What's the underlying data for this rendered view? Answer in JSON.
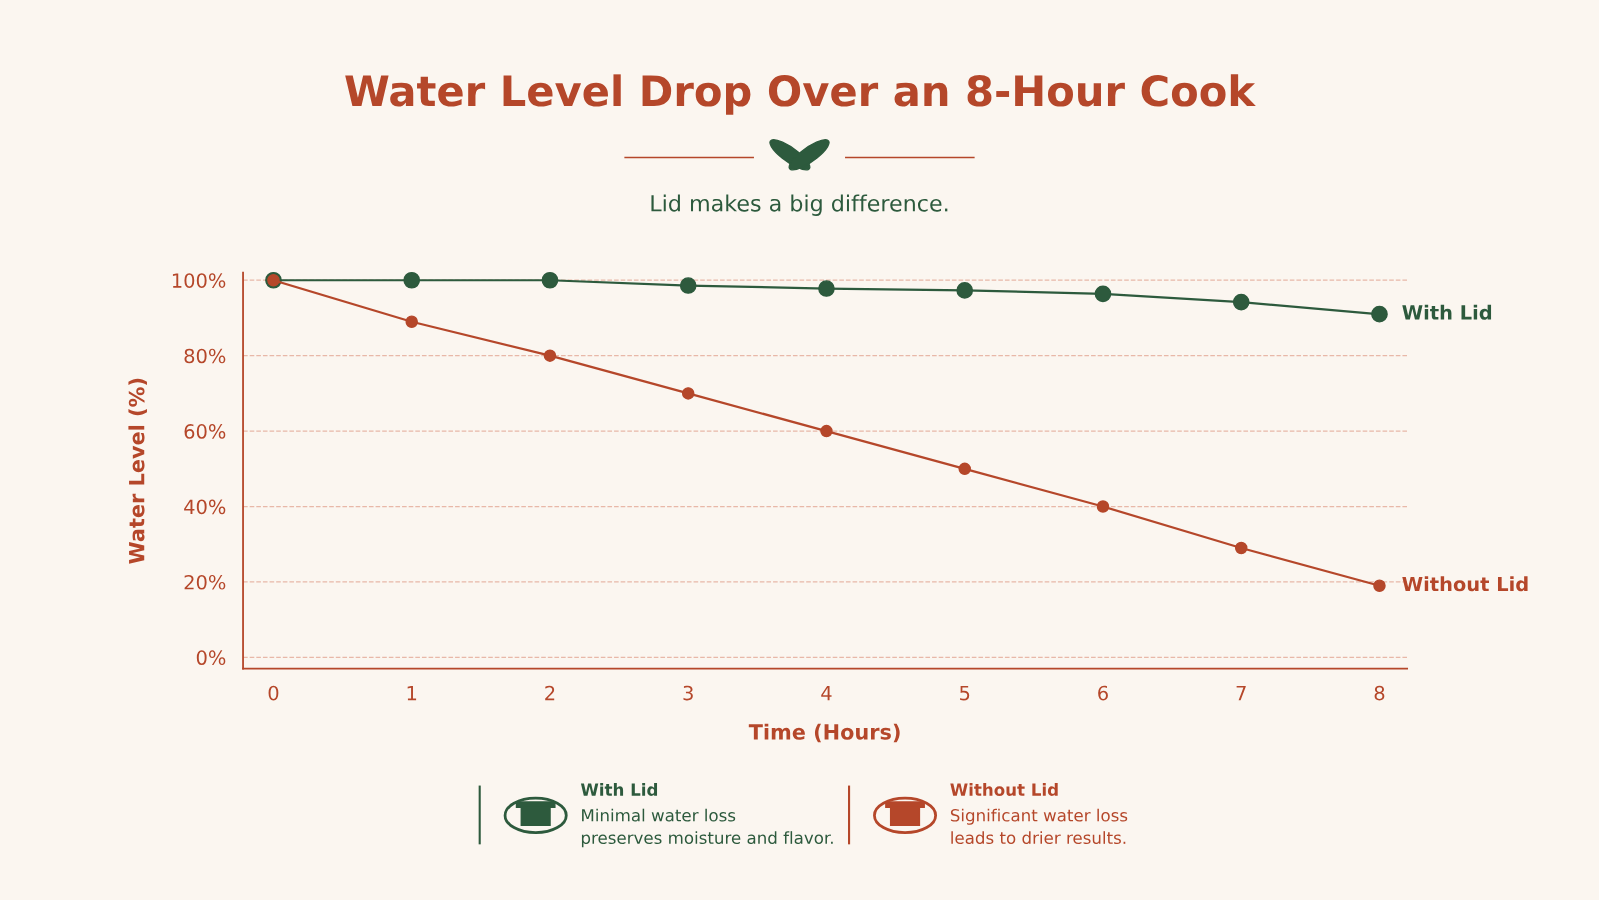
{
  "chart_data": {
    "type": "line",
    "title": "Water Level Drop Over an 8-Hour Cook",
    "subtitle": "Lid makes a big difference.",
    "xlabel": "Time (Hours)",
    "ylabel": "Water Level (%)",
    "x": [
      0,
      1,
      2,
      3,
      4,
      5,
      6,
      7,
      8
    ],
    "series": [
      {
        "name": "With Lid",
        "color": "#2d5a3d",
        "values": [
          100,
          100,
          100,
          98.6,
          97.8,
          97.3,
          96.4,
          94.2,
          91
        ]
      },
      {
        "name": "Without Lid",
        "color": "#b5472a",
        "values": [
          100,
          89,
          80,
          70,
          60,
          50,
          40,
          29,
          19
        ]
      }
    ],
    "xlim": [
      -0.22,
      8.2
    ],
    "xticks": [
      0,
      1,
      2,
      3,
      4,
      5,
      6,
      7,
      8
    ],
    "ylim": [
      -3,
      102
    ],
    "yticks": [
      {
        "value": 0,
        "label": "0%"
      },
      {
        "value": 20,
        "label": "20%"
      },
      {
        "value": 40,
        "label": "40%"
      },
      {
        "value": 60,
        "label": "60%"
      },
      {
        "value": 80,
        "label": "80%"
      },
      {
        "value": 100,
        "label": "100%"
      }
    ],
    "grid": "y",
    "marker": "circle",
    "line_style": "solid",
    "legend": false,
    "annotations": [
      "With Lid",
      "Minimal water loss\npreserves moisture and flavor.",
      "Without Lid",
      "Significant water loss\nleads to drier results."
    ]
  }
}
